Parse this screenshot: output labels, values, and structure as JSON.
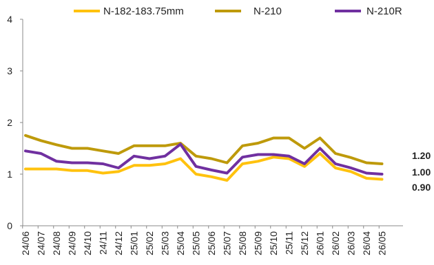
{
  "chart_data": {
    "type": "line",
    "title": "",
    "xlabel": "",
    "ylabel": "",
    "ylim": [
      0,
      4
    ],
    "yticks": [
      "0",
      "1",
      "2",
      "3",
      "4"
    ],
    "grid": false,
    "legend_position": "top",
    "x": [
      "24/06",
      "24/07",
      "24/08",
      "24/09",
      "24/10",
      "24/11",
      "24/12",
      "25/01",
      "25/02",
      "25/03",
      "25/04",
      "25/05",
      "25/06",
      "25/07",
      "25/08",
      "25/09",
      "25/10",
      "25/11",
      "25/12",
      "26/01",
      "26/02",
      "26/03",
      "26/04",
      "26/05"
    ],
    "series": [
      {
        "name": "N-182-183.75mm",
        "color": "#FFC20E",
        "values": [
          1.1,
          1.1,
          1.1,
          1.07,
          1.07,
          1.02,
          1.05,
          1.17,
          1.17,
          1.2,
          1.3,
          1.0,
          0.95,
          0.88,
          1.2,
          1.25,
          1.33,
          1.3,
          1.15,
          1.4,
          1.12,
          1.05,
          0.92,
          0.9
        ],
        "end_label": "0.90"
      },
      {
        "name": "N-210",
        "color": "#BE9A0B",
        "values": [
          1.75,
          1.65,
          1.57,
          1.5,
          1.5,
          1.45,
          1.4,
          1.55,
          1.55,
          1.55,
          1.6,
          1.35,
          1.3,
          1.22,
          1.55,
          1.6,
          1.7,
          1.7,
          1.5,
          1.7,
          1.4,
          1.32,
          1.22,
          1.2
        ],
        "end_label": "1.20"
      },
      {
        "name": "N-210R",
        "color": "#7030A0",
        "values": [
          1.45,
          1.4,
          1.25,
          1.22,
          1.22,
          1.2,
          1.12,
          1.35,
          1.3,
          1.35,
          1.58,
          1.15,
          1.08,
          1.02,
          1.33,
          1.38,
          1.38,
          1.35,
          1.2,
          1.5,
          1.2,
          1.12,
          1.02,
          1.0
        ],
        "end_label": "1.00"
      }
    ]
  }
}
